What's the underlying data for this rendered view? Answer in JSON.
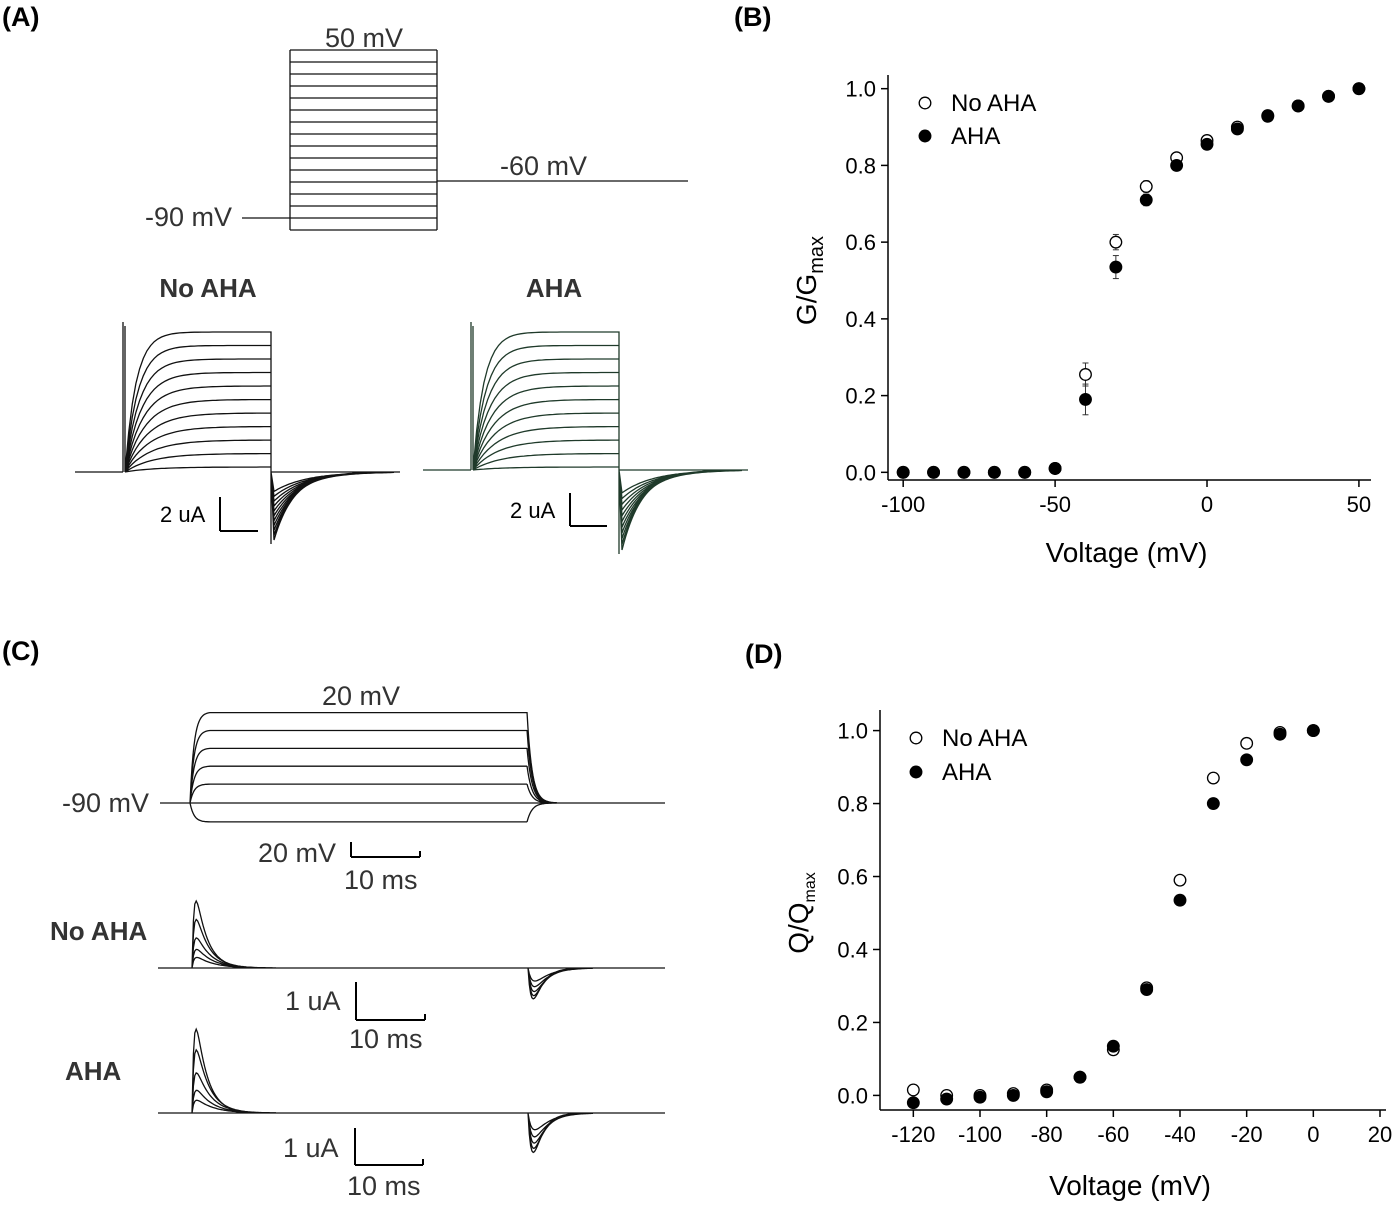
{
  "panels": {
    "a": {
      "letter": "(A)",
      "protocol_top": "50 mV",
      "protocol_tail": "-60 mV",
      "protocol_hold": "-90 mV",
      "trace_left_title": "No AHA",
      "trace_right_title": "AHA",
      "scale_left": "2 uA",
      "scale_right": "2 uA"
    },
    "c": {
      "letter": "(C)",
      "protocol_top": "20 mV",
      "protocol_hold": "-90 mV",
      "scale_v": "20 mV",
      "scale_t": "10 ms",
      "trace1_title": "No AHA",
      "trace1_scale_i": "1 uA",
      "trace1_scale_t": "10 ms",
      "trace2_title": "AHA",
      "trace2_scale_i": "1 uA",
      "trace2_scale_t": "10 ms"
    }
  },
  "chart_data": [
    {
      "id": "B",
      "panel_letter": "(B)",
      "type": "scatter",
      "xlabel": "Voltage (mV)",
      "ylabel": "G/G",
      "ylabel_sub": "max",
      "xlim": [
        -105,
        52
      ],
      "ylim": [
        -0.02,
        1.02
      ],
      "xticks": [
        -100,
        -50,
        0,
        50
      ],
      "yticks": [
        0.0,
        0.2,
        0.4,
        0.6,
        0.8,
        1.0
      ],
      "ytick_labels": [
        "0.0",
        "0.2",
        "0.4",
        "0.6",
        "0.8",
        "1.0"
      ],
      "legend_position": "top-left",
      "series": [
        {
          "name": "No AHA",
          "marker": "open-circle",
          "x": [
            -100,
            -90,
            -80,
            -70,
            -60,
            -50,
            -40,
            -30,
            -20,
            -10,
            0,
            10,
            20,
            30,
            40,
            50
          ],
          "y": [
            0.0,
            0.0,
            0.0,
            0.0,
            0.0,
            0.01,
            0.255,
            0.6,
            0.745,
            0.82,
            0.865,
            0.9,
            0.93,
            0.955,
            0.98,
            1.0
          ],
          "err": [
            0,
            0,
            0,
            0,
            0,
            0,
            0.03,
            0.02,
            0.015,
            0.01,
            0,
            0,
            0,
            0,
            0,
            0
          ]
        },
        {
          "name": "AHA",
          "marker": "filled-circle",
          "x": [
            -100,
            -90,
            -80,
            -70,
            -60,
            -50,
            -40,
            -30,
            -20,
            -10,
            0,
            10,
            20,
            30,
            40,
            50
          ],
          "y": [
            0.0,
            0.0,
            0.0,
            0.0,
            0.0,
            0.01,
            0.19,
            0.535,
            0.71,
            0.8,
            0.855,
            0.895,
            0.928,
            0.955,
            0.98,
            1.0
          ],
          "err": [
            0,
            0,
            0,
            0,
            0,
            0,
            0.04,
            0.03,
            0.015,
            0.01,
            0,
            0,
            0,
            0,
            0,
            0
          ]
        }
      ]
    },
    {
      "id": "D",
      "panel_letter": "(D)",
      "type": "scatter",
      "xlabel": "Voltage (mV)",
      "ylabel": "Q/Q",
      "ylabel_sub": "max",
      "xlim": [
        -130,
        20
      ],
      "ylim": [
        -0.04,
        1.04
      ],
      "xticks": [
        -120,
        -100,
        -80,
        -60,
        -40,
        -20,
        0,
        20
      ],
      "yticks": [
        0.0,
        0.2,
        0.4,
        0.6,
        0.8,
        1.0
      ],
      "ytick_labels": [
        "0.0",
        "0.2",
        "0.4",
        "0.6",
        "0.8",
        "1.0"
      ],
      "legend_position": "top-left",
      "series": [
        {
          "name": "No AHA",
          "marker": "open-circle",
          "x": [
            -120,
            -110,
            -100,
            -90,
            -80,
            -70,
            -60,
            -50,
            -40,
            -30,
            -20,
            -10,
            0
          ],
          "y": [
            0.015,
            0.0,
            0.0,
            0.005,
            0.015,
            0.05,
            0.125,
            0.295,
            0.59,
            0.87,
            0.965,
            0.995,
            1.0
          ]
        },
        {
          "name": "AHA",
          "marker": "filled-circle",
          "x": [
            -120,
            -110,
            -100,
            -90,
            -80,
            -70,
            -60,
            -50,
            -40,
            -30,
            -20,
            -10,
            0
          ],
          "y": [
            -0.02,
            -0.01,
            -0.005,
            0.0,
            0.01,
            0.05,
            0.135,
            0.29,
            0.535,
            0.8,
            0.92,
            0.99,
            1.0
          ]
        }
      ]
    }
  ]
}
